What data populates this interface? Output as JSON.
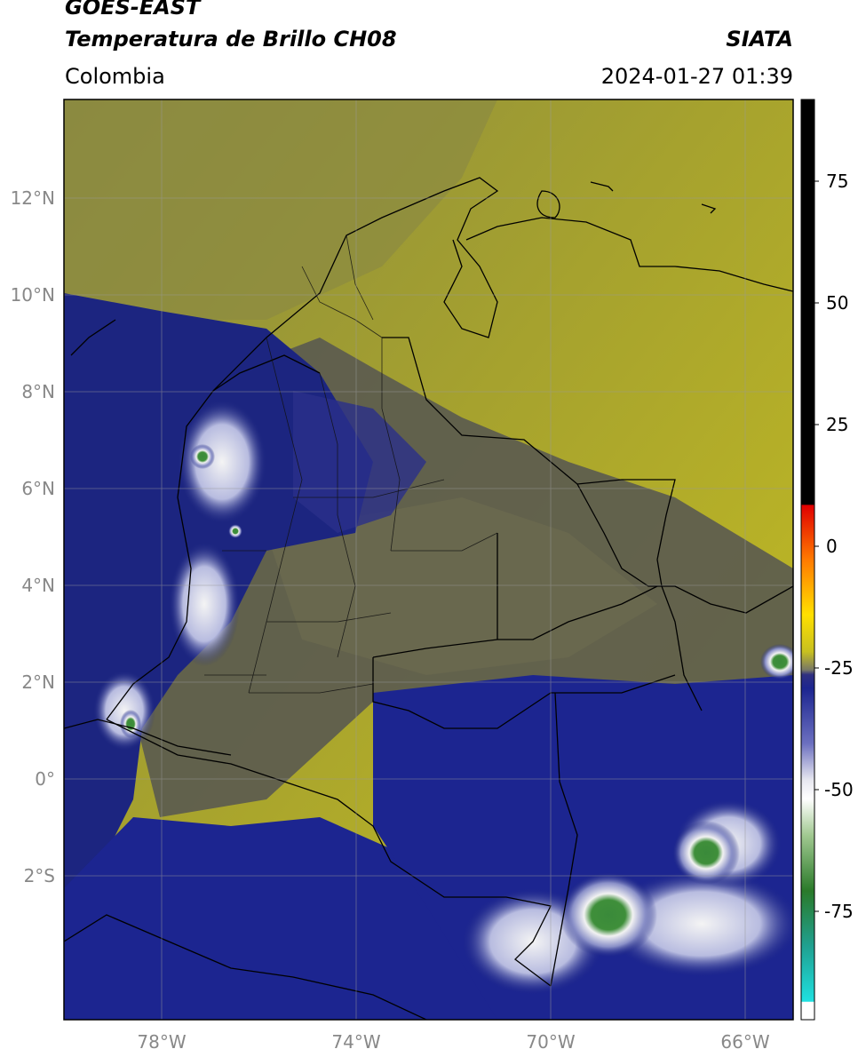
{
  "header": {
    "satellite": "GOES-EAST",
    "product": "Temperatura de Brillo CH08",
    "region": "Colombia",
    "institution": "SIATA",
    "datetime": "2024-01-27 01:39"
  },
  "map": {
    "lat_ticks": [
      {
        "label": "12°N",
        "lat": 12
      },
      {
        "label": "10°N",
        "lat": 10
      },
      {
        "label": "8°N",
        "lat": 8
      },
      {
        "label": "6°N",
        "lat": 6
      },
      {
        "label": "4°N",
        "lat": 4
      },
      {
        "label": "2°N",
        "lat": 2
      },
      {
        "label": "0°",
        "lat": 0
      },
      {
        "label": "2°S",
        "lat": -2
      }
    ],
    "lon_ticks": [
      {
        "label": "78°W",
        "lon": -78
      },
      {
        "label": "74°W",
        "lon": -74
      },
      {
        "label": "70°W",
        "lon": -70
      },
      {
        "label": "66°W",
        "lon": -66
      }
    ],
    "colors": {
      "warm_dry": "#c8c020",
      "mid_dry": "#8a8a40",
      "gray_land": "#555555",
      "cold_navy": "#1c2580",
      "very_cold_white": "#f0f0f0",
      "coldest_green": "#3a8a3a"
    }
  },
  "colorbar": {
    "ticks": [
      {
        "label": "75",
        "value": 75
      },
      {
        "label": "50",
        "value": 50
      },
      {
        "label": "25",
        "value": 25
      },
      {
        "label": "0",
        "value": 0
      },
      {
        "label": "-25",
        "value": -25
      },
      {
        "label": "-50",
        "value": -50
      },
      {
        "label": "-75",
        "value": -75
      }
    ]
  }
}
